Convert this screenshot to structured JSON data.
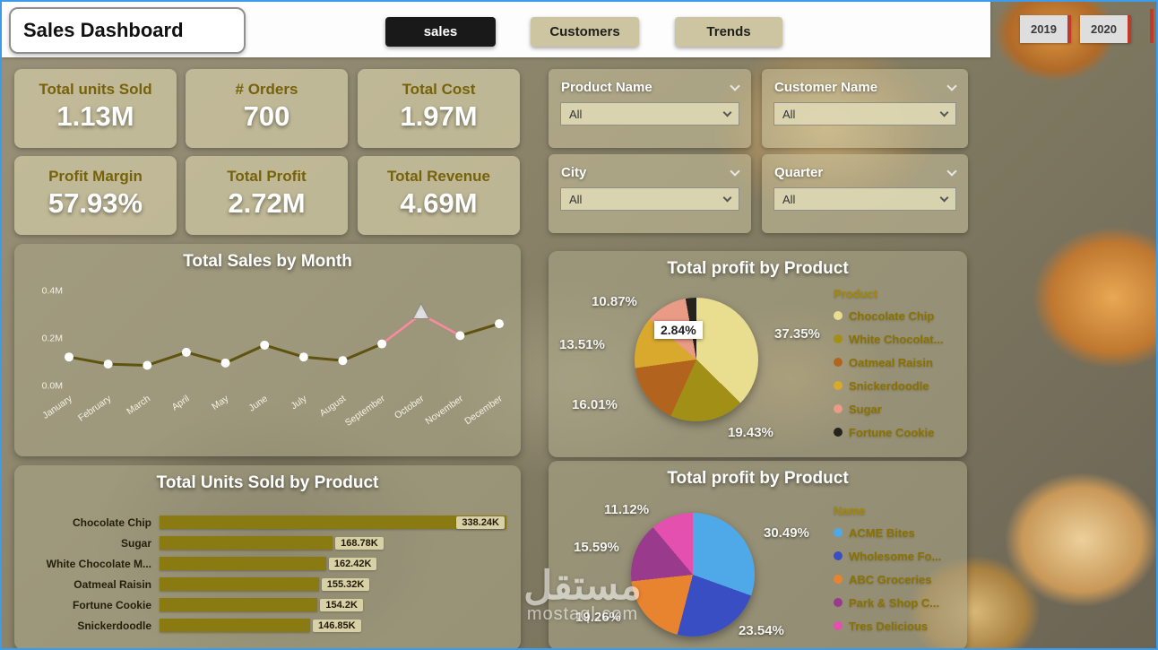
{
  "header": {
    "title": "Sales Dashboard",
    "tabs": [
      {
        "label": "sales",
        "active": true
      },
      {
        "label": "Customers",
        "active": false
      },
      {
        "label": "Trends",
        "active": false
      }
    ],
    "years": [
      "2019",
      "2020"
    ]
  },
  "kpis": [
    {
      "label": "Total units Sold",
      "value": "1.13M"
    },
    {
      "label": "# Orders",
      "value": "700"
    },
    {
      "label": "Total Cost",
      "value": "1.97M"
    },
    {
      "label": "Profit Margin",
      "value": "57.93%"
    },
    {
      "label": "Total Profit",
      "value": "2.72M"
    },
    {
      "label": "Total Revenue",
      "value": "4.69M"
    }
  ],
  "filters": [
    {
      "label": "Product Name",
      "value": "All"
    },
    {
      "label": "Customer Name",
      "value": "All"
    },
    {
      "label": "City",
      "value": "All"
    },
    {
      "label": "Quarter",
      "value": "All"
    }
  ],
  "watermark": {
    "logo_text": "مستقل",
    "site": "mostaql.com"
  },
  "chart_data": [
    {
      "type": "line",
      "title": "Total Sales by Month",
      "x": [
        "January",
        "February",
        "March",
        "April",
        "May",
        "June",
        "July",
        "August",
        "September",
        "October",
        "November",
        "December"
      ],
      "values": [
        0.12,
        0.09,
        0.085,
        0.14,
        0.095,
        0.17,
        0.12,
        0.105,
        0.175,
        0.3,
        0.21,
        0.26
      ],
      "unit": "M",
      "ylim": [
        0,
        0.4
      ],
      "yticks": [
        "0.0M",
        "0.2M",
        "0.4M"
      ],
      "line_color": "#5f5310",
      "marker_color": "#ffffff",
      "highlight": {
        "index": 9,
        "marker": "triangle",
        "segment_color": "#f08f9f"
      }
    },
    {
      "type": "pie",
      "title": "Total profit by Product",
      "legend_title": "Product",
      "slices": [
        {
          "name": "Chocolate Chip",
          "value": 37.35,
          "label": "37.35%",
          "color": "#e9dd90"
        },
        {
          "name": "White Chocolat...",
          "value": 19.43,
          "label": "19.43%",
          "color": "#a18f16"
        },
        {
          "name": "Oatmeal Raisin",
          "value": 16.01,
          "label": "16.01%",
          "color": "#b2641f"
        },
        {
          "name": "Snickerdoodle",
          "value": 13.51,
          "label": "13.51%",
          "color": "#d9a92e"
        },
        {
          "name": "Sugar",
          "value": 10.87,
          "label": "10.87%",
          "color": "#e99b85"
        },
        {
          "name": "Fortune Cookie",
          "value": 2.84,
          "label": "2.84%",
          "color": "#26231d"
        }
      ]
    },
    {
      "type": "bar",
      "title": "Total Units Sold by Product",
      "categories": [
        "Chocolate Chip",
        "Sugar",
        "White Chocolate M...",
        "Oatmeal Raisin",
        "Fortune Cookie",
        "Snickerdoodle"
      ],
      "values": [
        338.24,
        168.78,
        162.42,
        155.32,
        154.2,
        146.85
      ],
      "value_labels": [
        "338.24K",
        "168.78K",
        "162.42K",
        "155.32K",
        "154.2K",
        "146.85K"
      ],
      "bar_color": "#8a7a12"
    },
    {
      "type": "pie",
      "title": "Total profit by Product",
      "legend_title": "Name",
      "slices": [
        {
          "name": "ACME Bites",
          "value": 30.49,
          "label": "30.49%",
          "color": "#4fa8e8"
        },
        {
          "name": "Wholesome Fo...",
          "value": 23.54,
          "label": "23.54%",
          "color": "#3a4ec4"
        },
        {
          "name": "ABC Groceries",
          "value": 19.26,
          "label": "19.26%",
          "color": "#e8832f"
        },
        {
          "name": "Park & Shop C...",
          "value": 15.59,
          "label": "15.59%",
          "color": "#993a8c"
        },
        {
          "name": "Tres Delicious",
          "value": 11.12,
          "label": "11.12%",
          "color": "#e450ae"
        }
      ]
    }
  ]
}
